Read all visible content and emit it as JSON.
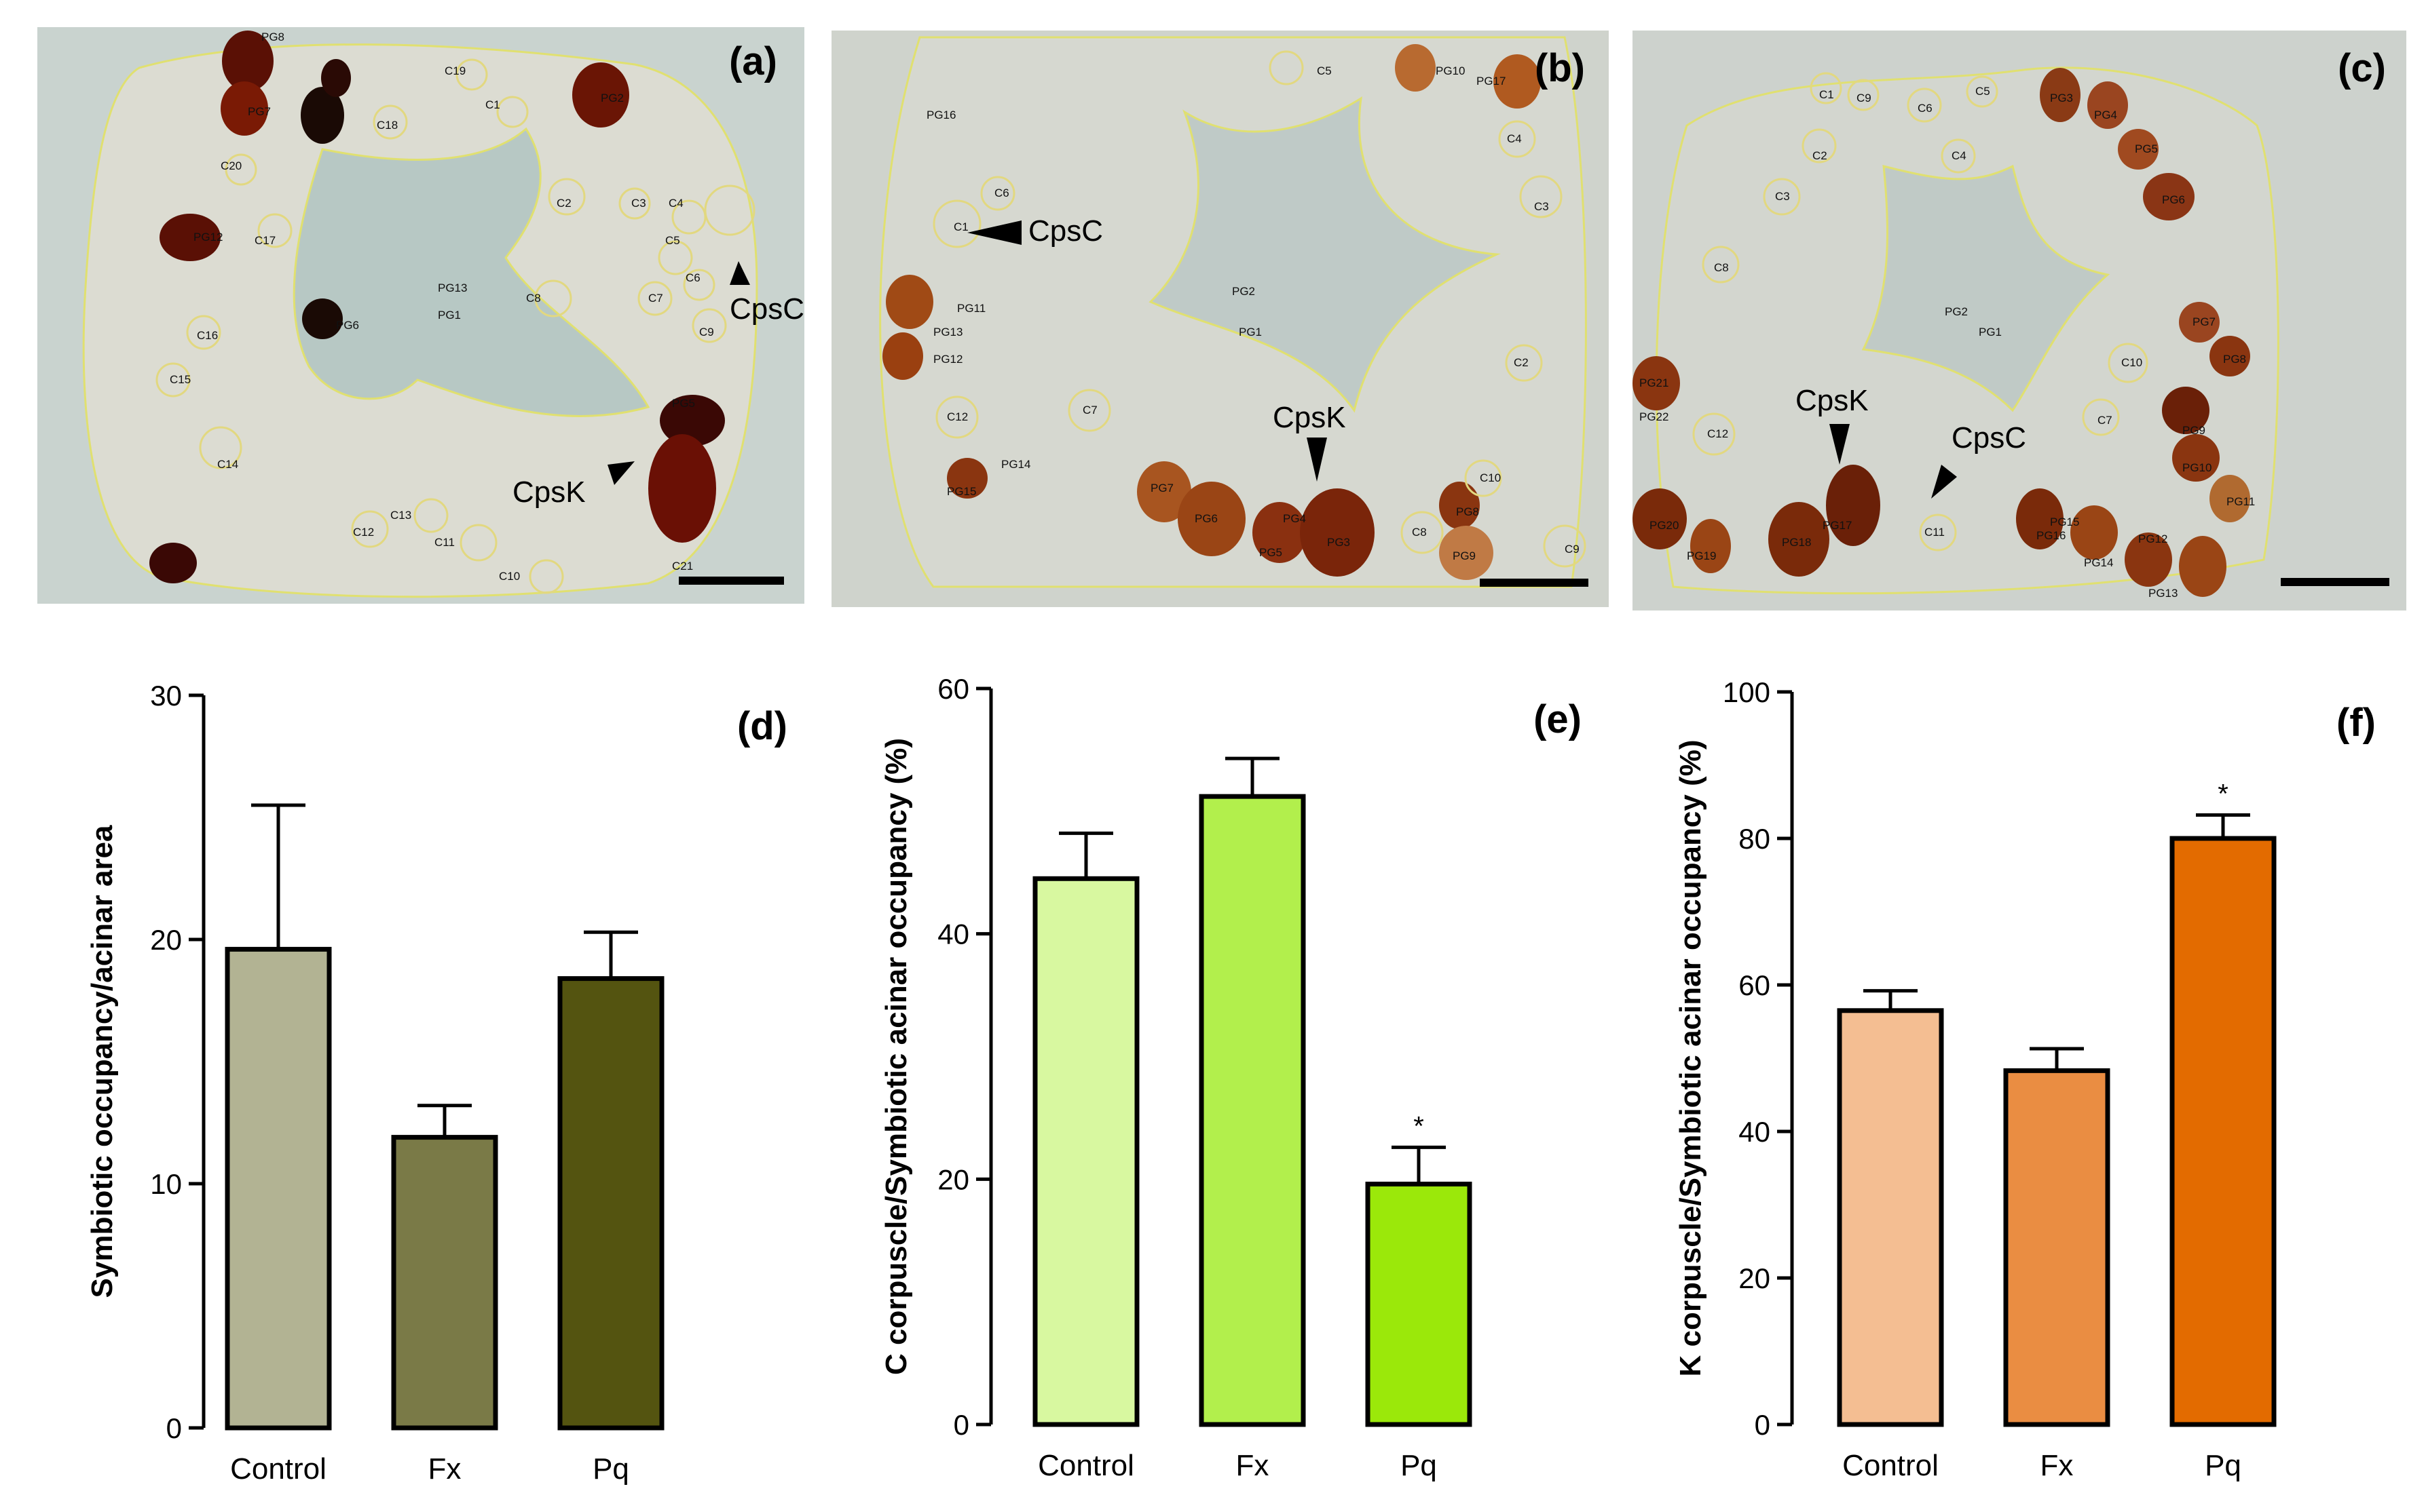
{
  "panels": [
    {
      "label": "(a)",
      "background": "#c9d3cf",
      "arrow_labels": [
        "CpsC",
        "CpsK"
      ],
      "pg_labels": [
        "PG8",
        "PG7",
        "PG12",
        "PG2",
        "PG13",
        "PG1",
        "PG6",
        "PG5"
      ],
      "c_labels": [
        "C19",
        "C1",
        "C18",
        "C20",
        "C17",
        "C2",
        "C3",
        "C4",
        "C5",
        "C6",
        "C7",
        "C8",
        "C9",
        "C16",
        "C15",
        "C14",
        "C12",
        "C13",
        "C11",
        "C10",
        "C21"
      ]
    },
    {
      "label": "(b)",
      "background": "#cfd3cc",
      "arrow_labels": [
        "CpsC",
        "CpsK"
      ],
      "pg_labels": [
        "PG16",
        "PG10",
        "PG17",
        "PG11",
        "PG13",
        "PG12",
        "PG2",
        "PG1",
        "PG14",
        "PG15",
        "PG7",
        "PG6",
        "PG4",
        "PG5",
        "PG3",
        "PG8",
        "PG9"
      ],
      "c_labels": [
        "C5",
        "C4",
        "C6",
        "C1",
        "C3",
        "C2",
        "C12",
        "C7",
        "C10",
        "C8",
        "C9"
      ]
    },
    {
      "label": "(c)",
      "background": "#cdd2cd",
      "arrow_labels": [
        "CpsK",
        "CpsC"
      ],
      "pg_labels": [
        "PG3",
        "PG4",
        "PG5",
        "PG6",
        "PG2",
        "PG1",
        "PG7",
        "PG8",
        "PG21",
        "PG22",
        "PG9",
        "PG10",
        "PG11",
        "PG17",
        "PG20",
        "PG19",
        "PG18",
        "PG15",
        "PG16",
        "PG12",
        "PG14",
        "PG13"
      ],
      "c_labels": [
        "C1",
        "C9",
        "C6",
        "C5",
        "C2",
        "C4",
        "C3",
        "C8",
        "C10",
        "C7",
        "C12",
        "C11"
      ]
    }
  ],
  "chart_data": [
    {
      "label": "(d)",
      "type": "bar",
      "categories": [
        "Control",
        "Fx",
        "Pq"
      ],
      "values": [
        19.6,
        11.9,
        18.4
      ],
      "errors": [
        5.9,
        1.3,
        1.9
      ],
      "colors": [
        "#b2b393",
        "#7a7a47",
        "#545410"
      ],
      "ylabel": "Symbiotic occupancy/acinar area",
      "ylim": [
        0,
        30
      ],
      "yticks": [
        "0",
        "10",
        "20",
        "30"
      ],
      "significance": [
        "",
        "",
        ""
      ]
    },
    {
      "label": "(e)",
      "type": "bar",
      "categories": [
        "Control",
        "Fx",
        "Pq"
      ],
      "values": [
        44.5,
        51.2,
        19.6
      ],
      "errors": [
        3.7,
        3.1,
        3.0
      ],
      "colors": [
        "#d8f8a0",
        "#b2ef4c",
        "#9be80a"
      ],
      "ylabel": "C corpuscle/Symbiotic acinar occupancy (%)",
      "ylim": [
        0,
        60
      ],
      "yticks": [
        "0",
        "20",
        "40",
        "60"
      ],
      "significance": [
        "",
        "",
        "*"
      ]
    },
    {
      "label": "(f)",
      "type": "bar",
      "categories": [
        "Control",
        "Fx",
        "Pq"
      ],
      "values": [
        56.5,
        48.3,
        80.0
      ],
      "errors": [
        2.7,
        3.0,
        3.2
      ],
      "colors": [
        "#f4be92",
        "#ea8d42",
        "#e36b00"
      ],
      "ylabel": "K corpuscle/Symbiotic acinar occupancy (%)",
      "ylim": [
        0,
        100
      ],
      "yticks": [
        "0",
        "20",
        "40",
        "60",
        "80",
        "100"
      ],
      "significance": [
        "",
        "",
        "*"
      ]
    }
  ]
}
